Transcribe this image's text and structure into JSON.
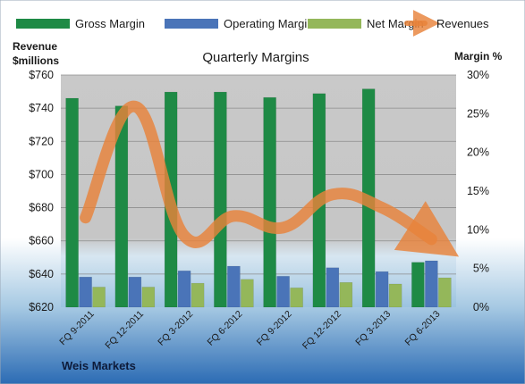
{
  "chart_data": {
    "type": "bar",
    "title": "Quarterly Margins",
    "company": "Weis Markets",
    "ylabel_left": [
      "Revenue",
      "$millions"
    ],
    "ylabel_right": "Margin %",
    "left_axis": {
      "min": 620,
      "max": 760,
      "step": 20,
      "tick_labels": [
        "$620",
        "$640",
        "$660",
        "$680",
        "$700",
        "$720",
        "$740",
        "$760"
      ]
    },
    "right_axis": {
      "min": 0,
      "max": 30,
      "step": 5,
      "tick_labels": [
        "0%",
        "5%",
        "10%",
        "15%",
        "20%",
        "25%",
        "30%"
      ]
    },
    "categories": [
      "FQ 9-2011",
      "FQ 12-2011",
      "FQ 3-2012",
      "FQ 6-2012",
      "FQ 9-2012",
      "FQ 12-2012",
      "FQ 3-2013",
      "FQ 6-2013"
    ],
    "series": [
      {
        "name": "Gross Margin",
        "axis": "right",
        "kind": "bar",
        "color": "#1e8a45",
        "values": [
          27.0,
          26.0,
          27.8,
          27.8,
          27.1,
          27.6,
          28.2,
          5.8
        ]
      },
      {
        "name": "Operating Margin",
        "axis": "right",
        "kind": "bar",
        "color": "#4a74b8",
        "values": [
          3.9,
          3.9,
          4.7,
          5.3,
          4.0,
          5.1,
          4.6,
          6.0
        ]
      },
      {
        "name": "Net Margin",
        "axis": "right",
        "kind": "bar",
        "color": "#94b75a",
        "values": [
          2.6,
          2.6,
          3.1,
          3.6,
          2.5,
          3.2,
          3.0,
          3.8
        ]
      },
      {
        "name": "Revenues",
        "axis": "left",
        "kind": "line",
        "color": "#e8823a",
        "values": [
          674,
          741,
          663,
          675,
          668,
          688,
          680,
          661
        ]
      }
    ],
    "legend": {
      "position": "top"
    },
    "grid": true
  }
}
